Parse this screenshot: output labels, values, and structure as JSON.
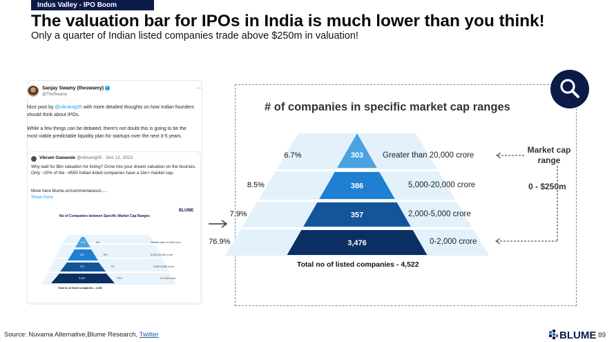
{
  "header": {
    "tag": "Indus Valley - IPO Boom",
    "title": "The valuation bar for IPOs in India is much lower than you think!",
    "subtitle": "Only a quarter of Indian listed companies trade above $250m in valuation!"
  },
  "tweet": {
    "name": "Sanjay Swamy (theswamy)",
    "handle": "@TheSwamy",
    "more_icon": "more-dots-icon",
    "text1_pre": "Nice post by ",
    "text1_mention": "@vikramg05",
    "text1_post": " with more detailed thoughts on how Indian founders should think about IPOs.",
    "text2": "While a few things can be debated, there's not doubt this is going to be the most viable predictable liquidity plan for startups over the next 3-5 years.",
    "quote": {
      "name": "Vikram Gawande",
      "meta": "@vikramg05 · Dec 12, 2023",
      "text": "Why wait for $bn valuation for listing? Grow into your dream valuation on the bourses. Only ~10% of the ~4500 Indian listed companies have a 1bn+ market cap.",
      "more": "More here blume.vc/commentaries/s.....",
      "show_more": "Show more"
    },
    "mini_chart": {
      "title": "No of Companies between Specific Market Cap Ranges",
      "logo": "BLUME",
      "rows": [
        {
          "value": "276",
          "pct": "6%",
          "range": "Greater than 20,000 crore"
        },
        {
          "value": "367",
          "pct": "8%",
          "range": "5,000-20,000 crore"
        },
        {
          "value": "312",
          "pct": "7%",
          "range": "2,000-5,000 crore"
        },
        {
          "value": "3,497",
          "pct": "79%",
          "range": "0-2,000 crore"
        }
      ],
      "total": "Total no of listed companies - 4,452"
    }
  },
  "chart_data": {
    "type": "pyramid",
    "title": "# of companies in specific market cap ranges",
    "rows": [
      {
        "range": "Greater than 20,000 crore",
        "count": 303,
        "count_label": "303",
        "pct": "6.7%",
        "color": "#4aa3df"
      },
      {
        "range": "5,000-20,000 crore",
        "count": 386,
        "count_label": "386",
        "pct": "8.5%",
        "color": "#1f7fd0"
      },
      {
        "range": "2,000-5,000 crore",
        "count": 357,
        "count_label": "357",
        "pct": "7.9%",
        "color": "#14559a"
      },
      {
        "range": "0-2,000 crore",
        "count": 3476,
        "count_label": "3,476",
        "pct": "76.9%",
        "color": "#0c2f63"
      }
    ],
    "total": "Total no of listed companies - 4,522",
    "side_header": "Market cap range",
    "side_range": "0 - $250m",
    "band_color": "#e3f1fb"
  },
  "footer": {
    "source_prefix": "Source: Nuvama Alternative,Blume Research, ",
    "source_link": "Twitter",
    "logo": "BLUME",
    "page": "89"
  },
  "icons": {
    "search": "magnifier-icon",
    "arrow": "right-arrow-icon"
  }
}
